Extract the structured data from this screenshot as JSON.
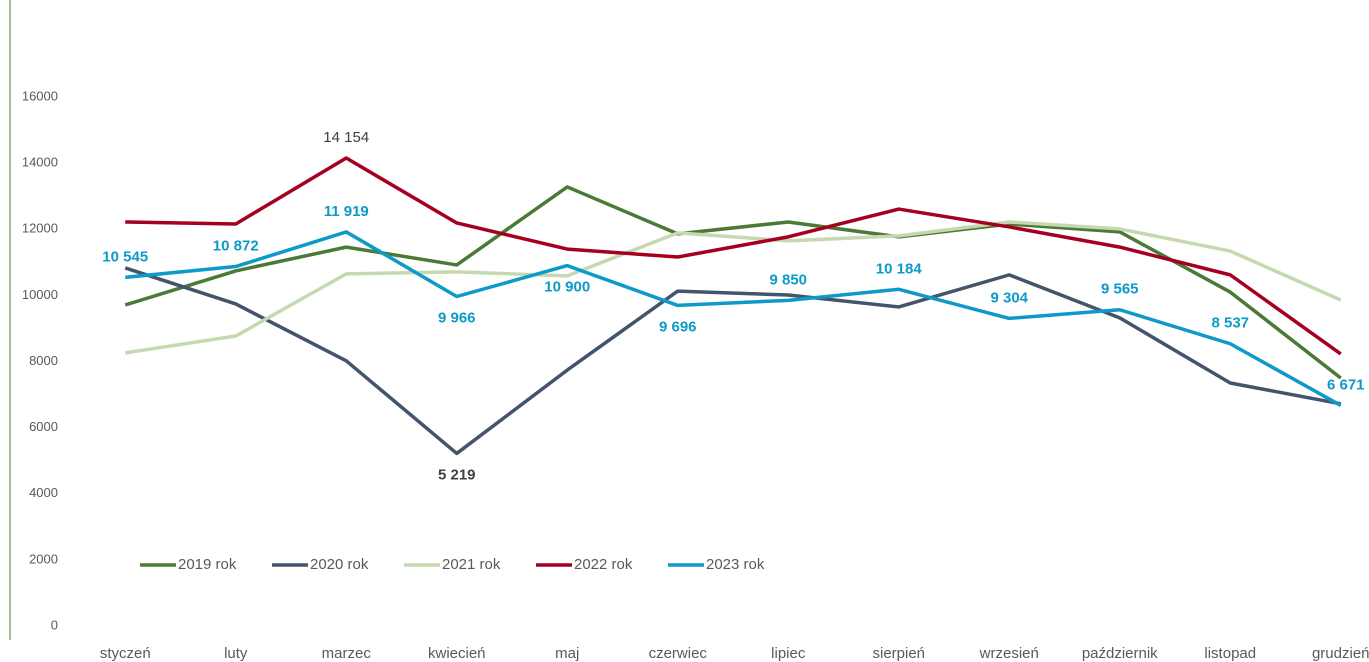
{
  "chart_data": {
    "type": "line",
    "categories": [
      "styczeń",
      "luty",
      "marzec",
      "kwiecień",
      "maj",
      "czerwiec",
      "lipiec",
      "sierpień",
      "wrzesień",
      "październik",
      "listopad",
      "grudzień"
    ],
    "ylim": [
      0,
      16000
    ],
    "yticks": [
      0,
      2000,
      4000,
      6000,
      8000,
      10000,
      12000,
      14000,
      16000
    ],
    "grid": false,
    "legend": "bottom-left",
    "series": [
      {
        "name": "2019 rok",
        "color": "#4a7a35",
        "values": [
          9710,
          10740,
          11460,
          10920,
          13280,
          11860,
          12220,
          11770,
          12160,
          11920,
          10100,
          7500
        ]
      },
      {
        "name": "2020 rok",
        "color": "#44546a",
        "values": [
          10830,
          9740,
          8020,
          5219,
          7740,
          10130,
          10010,
          9650,
          10620,
          9320,
          7350,
          6720
        ],
        "value_labels": [
          null,
          null,
          null,
          "5 219",
          null,
          null,
          null,
          null,
          null,
          null,
          null,
          null
        ]
      },
      {
        "name": "2021 rok",
        "color": "#c5d9b1",
        "values": [
          8260,
          8770,
          10650,
          10710,
          10590,
          11890,
          11650,
          11800,
          12220,
          12010,
          11340,
          9860
        ]
      },
      {
        "name": "2022 rok",
        "color": "#a50021",
        "values": [
          12220,
          12160,
          14154,
          12190,
          11400,
          11160,
          11770,
          12610,
          12070,
          11460,
          10620,
          8230
        ],
        "value_labels": [
          null,
          null,
          "14 154",
          null,
          null,
          null,
          null,
          null,
          null,
          null,
          null,
          null
        ]
      },
      {
        "name": "2023 rok",
        "color": "#0e9ac8",
        "values": [
          10545,
          10872,
          11919,
          9966,
          10900,
          9696,
          9850,
          10184,
          9304,
          9565,
          8537,
          6671
        ],
        "value_labels": [
          "10 545",
          "10 872",
          "11 919",
          "9 966",
          "10 900",
          "9 696",
          "9 850",
          "10 184",
          "9 304",
          "9 565",
          "8 537",
          "6 671"
        ]
      }
    ]
  }
}
